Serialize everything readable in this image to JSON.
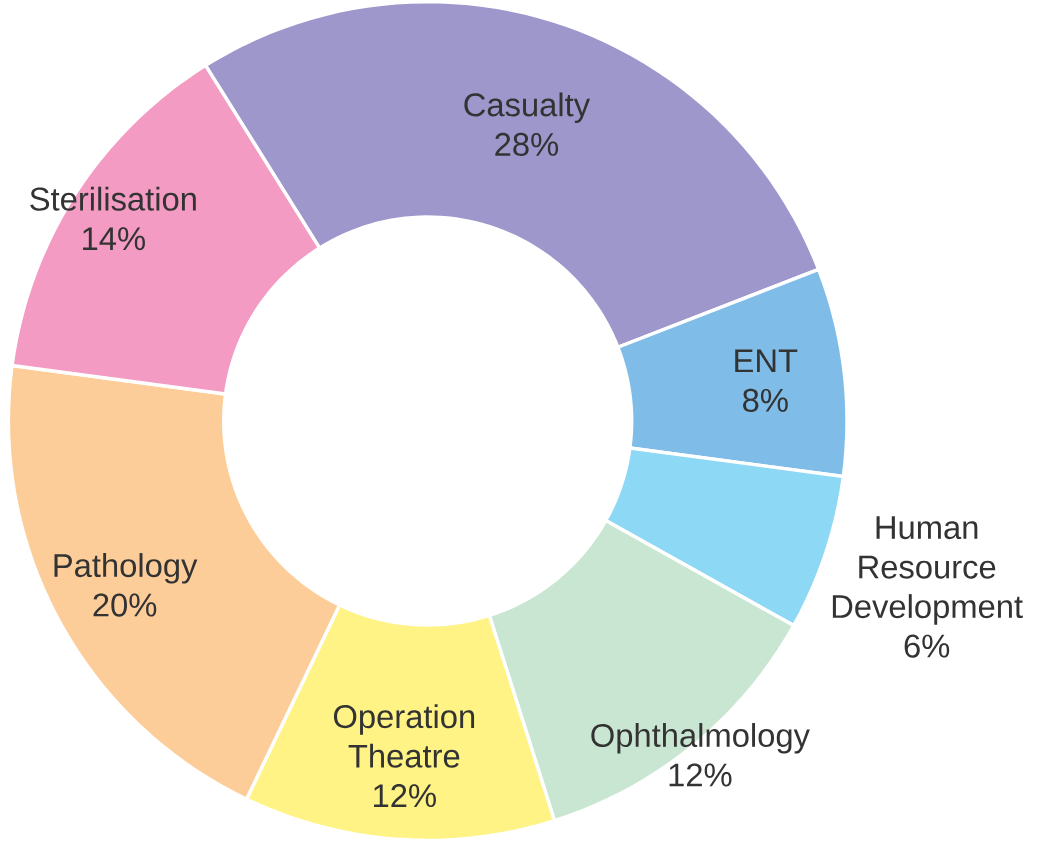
{
  "chart_data": {
    "type": "donut",
    "categories": [
      "Casualty",
      "ENT",
      "Human Resource Development",
      "Ophthalmology",
      "Operation Theatre",
      "Pathology",
      "Sterilisation"
    ],
    "values": [
      28,
      8,
      6,
      12,
      12,
      20,
      14
    ],
    "value_labels": [
      "28%",
      "8%",
      "6%",
      "12%",
      "12%",
      "20%",
      "14%"
    ],
    "colors": [
      "#9e97cc",
      "#7fbde8",
      "#8dd8f5",
      "#c9e6d2",
      "#fff385",
      "#fdcd99",
      "#f39bc3"
    ]
  }
}
